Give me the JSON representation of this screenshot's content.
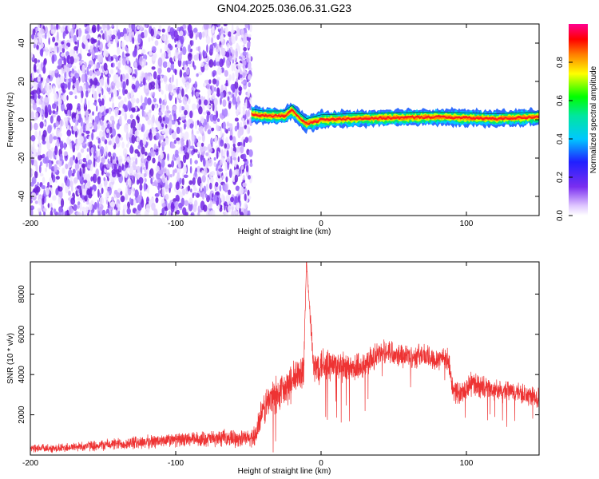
{
  "chart_data": [
    {
      "type": "heatmap",
      "title": "GN04.2025.036.06.31.G23",
      "xlabel": "Height of straight line (km)",
      "ylabel": "Frequency (Hz)",
      "xlim": [
        -200,
        150
      ],
      "ylim": [
        -50,
        50
      ],
      "xticks": [
        -200,
        -100,
        0,
        100
      ],
      "yticks": [
        -40,
        -20,
        0,
        20,
        40
      ],
      "grid": false,
      "colorbar": {
        "label": "Normalized spectral amplitude",
        "range": [
          0,
          1
        ],
        "ticks": [
          "0.0",
          "0.2",
          "0.4",
          "0.6",
          "0.8"
        ]
      },
      "regions": [
        {
          "name": "noise",
          "x_range": [
            -200,
            -48
          ],
          "y_range": [
            -50,
            50
          ],
          "amplitude": 0.15
        },
        {
          "name": "carrier",
          "x_range": [
            -48,
            150
          ],
          "center_frequency_hz": 1.5,
          "half_width_hz": 2,
          "amplitude": 0.9
        }
      ],
      "carrier_center": [
        {
          "x": -48,
          "f": 3
        },
        {
          "x": -40,
          "f": 2
        },
        {
          "x": -25,
          "f": 2
        },
        {
          "x": -20,
          "f": 5
        },
        {
          "x": -15,
          "f": 1
        },
        {
          "x": -10,
          "f": -2
        },
        {
          "x": 0,
          "f": 0
        },
        {
          "x": 20,
          "f": 0.5
        },
        {
          "x": 50,
          "f": 1
        },
        {
          "x": 80,
          "f": 1.5
        },
        {
          "x": 100,
          "f": 1
        },
        {
          "x": 120,
          "f": 0.5
        },
        {
          "x": 150,
          "f": 1.5
        }
      ]
    },
    {
      "type": "line",
      "xlabel": "Height of straight line (km)",
      "ylabel": "SNR (10 * v/v)",
      "xlim": [
        -200,
        150
      ],
      "ylim": [
        0,
        9600
      ],
      "xticks": [
        -200,
        -100,
        0,
        100
      ],
      "yticks": [
        2000,
        4000,
        6000,
        8000
      ],
      "grid": false,
      "series": [
        {
          "color": "#ee3333",
          "x": [
            -200,
            -180,
            -160,
            -140,
            -120,
            -100,
            -80,
            -60,
            -50,
            -45,
            -40,
            -35,
            -30,
            -25,
            -20,
            -15,
            -12,
            -10,
            -5,
            0,
            10,
            20,
            30,
            40,
            45,
            50,
            55,
            60,
            65,
            70,
            75,
            80,
            85,
            88,
            90,
            95,
            100,
            105,
            110,
            115,
            120,
            125,
            130,
            140,
            150
          ],
          "y": [
            300,
            350,
            450,
            550,
            650,
            750,
            800,
            850,
            800,
            1000,
            2200,
            2800,
            3000,
            3200,
            3600,
            4000,
            4300,
            9600,
            4200,
            4600,
            4400,
            4200,
            4500,
            5000,
            5200,
            5100,
            5000,
            4900,
            4900,
            5000,
            4800,
            4800,
            4900,
            4600,
            3400,
            3000,
            3300,
            3600,
            3400,
            3300,
            3200,
            3100,
            3200,
            3000,
            2800
          ],
          "noise_amplitude": [
            250,
            250,
            300,
            350,
            400,
            400,
            450,
            500,
            500,
            700,
            1000,
            1100,
            1100,
            1100,
            1100,
            1100,
            1100,
            0,
            1100,
            1100,
            1000,
            900,
            900,
            700,
            700,
            700,
            700,
            700,
            700,
            700,
            700,
            700,
            700,
            700,
            700,
            700,
            700,
            700,
            700,
            600,
            600,
            600,
            600,
            600,
            600
          ]
        }
      ]
    }
  ]
}
